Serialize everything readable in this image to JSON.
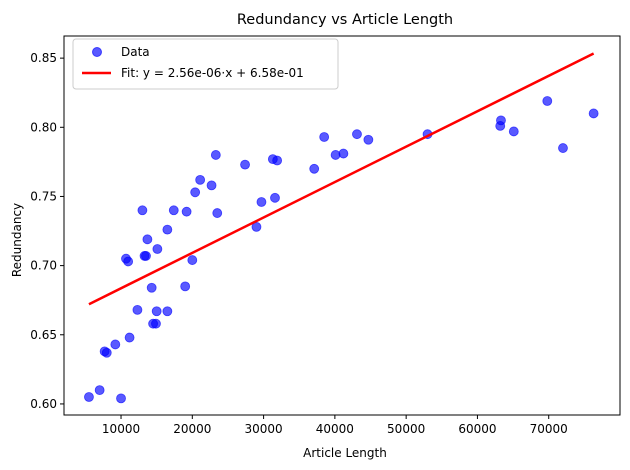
{
  "chart_data": {
    "type": "scatter",
    "title": "Redundancy vs Article Length",
    "xlabel": "Article Length",
    "ylabel": "Redundancy",
    "xlim": [
      2000,
      80000
    ],
    "ylim": [
      0.592,
      0.866
    ],
    "xticks": [
      10000,
      20000,
      30000,
      40000,
      50000,
      60000,
      70000
    ],
    "xtick_labels": [
      "10000",
      "20000",
      "30000",
      "40000",
      "50000",
      "60000",
      "70000"
    ],
    "yticks": [
      0.6,
      0.65,
      0.7,
      0.75,
      0.8,
      0.85
    ],
    "ytick_labels": [
      "0.60",
      "0.65",
      "0.70",
      "0.75",
      "0.80",
      "0.85"
    ],
    "grid": false,
    "legend_position": "top-left",
    "colors": {
      "data": "#0000ff",
      "fit": "#ff0000"
    },
    "series": [
      {
        "name": "Data",
        "kind": "scatter",
        "points": [
          [
            5500,
            0.605
          ],
          [
            7000,
            0.61
          ],
          [
            7700,
            0.638
          ],
          [
            8000,
            0.637
          ],
          [
            9200,
            0.643
          ],
          [
            10000,
            0.604
          ],
          [
            10700,
            0.705
          ],
          [
            11000,
            0.703
          ],
          [
            11200,
            0.648
          ],
          [
            12300,
            0.668
          ],
          [
            13000,
            0.74
          ],
          [
            13300,
            0.707
          ],
          [
            13500,
            0.707
          ],
          [
            13700,
            0.719
          ],
          [
            14300,
            0.684
          ],
          [
            14500,
            0.658
          ],
          [
            14900,
            0.658
          ],
          [
            15000,
            0.667
          ],
          [
            15100,
            0.712
          ],
          [
            16500,
            0.667
          ],
          [
            16500,
            0.726
          ],
          [
            17400,
            0.74
          ],
          [
            19000,
            0.685
          ],
          [
            19200,
            0.739
          ],
          [
            20000,
            0.704
          ],
          [
            20400,
            0.753
          ],
          [
            21100,
            0.762
          ],
          [
            22700,
            0.758
          ],
          [
            23300,
            0.78
          ],
          [
            23500,
            0.738
          ],
          [
            27400,
            0.773
          ],
          [
            29000,
            0.728
          ],
          [
            29700,
            0.746
          ],
          [
            31300,
            0.777
          ],
          [
            31600,
            0.749
          ],
          [
            31900,
            0.776
          ],
          [
            37100,
            0.77
          ],
          [
            38500,
            0.793
          ],
          [
            40100,
            0.78
          ],
          [
            41200,
            0.781
          ],
          [
            43100,
            0.795
          ],
          [
            44700,
            0.791
          ],
          [
            53000,
            0.795
          ],
          [
            63200,
            0.801
          ],
          [
            63300,
            0.805
          ],
          [
            65100,
            0.797
          ],
          [
            69800,
            0.819
          ],
          [
            72000,
            0.785
          ],
          [
            76300,
            0.81
          ]
        ]
      },
      {
        "name": "Fit: y = 2.56e-06·x + 6.58e-01",
        "kind": "line",
        "slope": 2.56e-06,
        "intercept": 0.658,
        "x_range": [
          5500,
          76300
        ]
      }
    ]
  }
}
